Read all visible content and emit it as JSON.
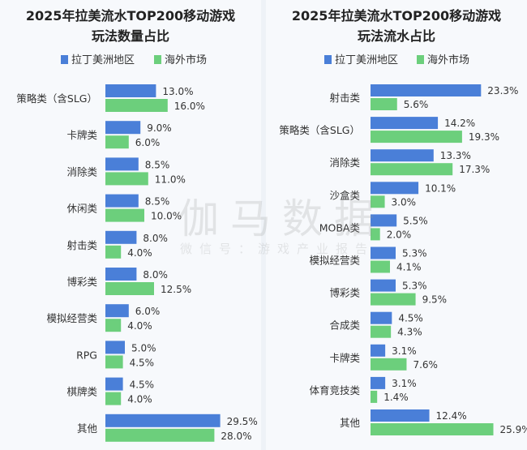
{
  "colors": {
    "latam": "#4a7fd8",
    "overseas": "#6ccf7c",
    "text": "#222222",
    "panel": "#f7f9fc"
  },
  "watermark": {
    "brand": "伽马数据",
    "sub": "微信号：游戏产业报告"
  },
  "chart_data": [
    {
      "type": "bar",
      "orientation": "horizontal",
      "title": [
        "2025年拉美流水TOP200移动游戏",
        "玩法数量占比"
      ],
      "legend_position": "top",
      "categories": [
        "策略类（含SLG）",
        "卡牌类",
        "消除类",
        "休闲类",
        "射击类",
        "博彩类",
        "模拟经营类",
        "RPG",
        "棋牌类",
        "其他"
      ],
      "series": [
        {
          "name": "拉丁美洲地区",
          "values": [
            13.0,
            9.0,
            8.5,
            8.5,
            8.0,
            8.0,
            6.0,
            5.0,
            4.5,
            29.5
          ]
        },
        {
          "name": "海外市场",
          "values": [
            16.0,
            6.0,
            11.0,
            10.0,
            4.0,
            12.5,
            4.0,
            4.5,
            4.0,
            28.0
          ]
        }
      ],
      "value_format": "percent, 1 decimal",
      "grid": false
    },
    {
      "type": "bar",
      "orientation": "horizontal",
      "title": [
        "2025年拉美流水TOP200移动游戏",
        "玩法流水占比"
      ],
      "legend_position": "top",
      "categories": [
        "射击类",
        "策略类（含SLG）",
        "消除类",
        "沙盒类",
        "MOBA类",
        "模拟经营类",
        "博彩类",
        "合成类",
        "卡牌类",
        "体育竞技类",
        "其他"
      ],
      "series": [
        {
          "name": "拉丁美洲地区",
          "values": [
            23.3,
            14.2,
            13.3,
            10.1,
            5.5,
            5.3,
            5.3,
            4.5,
            3.1,
            3.1,
            12.4
          ]
        },
        {
          "name": "海外市场",
          "values": [
            5.6,
            19.3,
            17.3,
            3.0,
            2.0,
            4.1,
            9.5,
            4.3,
            7.6,
            1.4,
            25.9
          ]
        }
      ],
      "value_format": "percent, 1 decimal",
      "grid": false
    }
  ]
}
